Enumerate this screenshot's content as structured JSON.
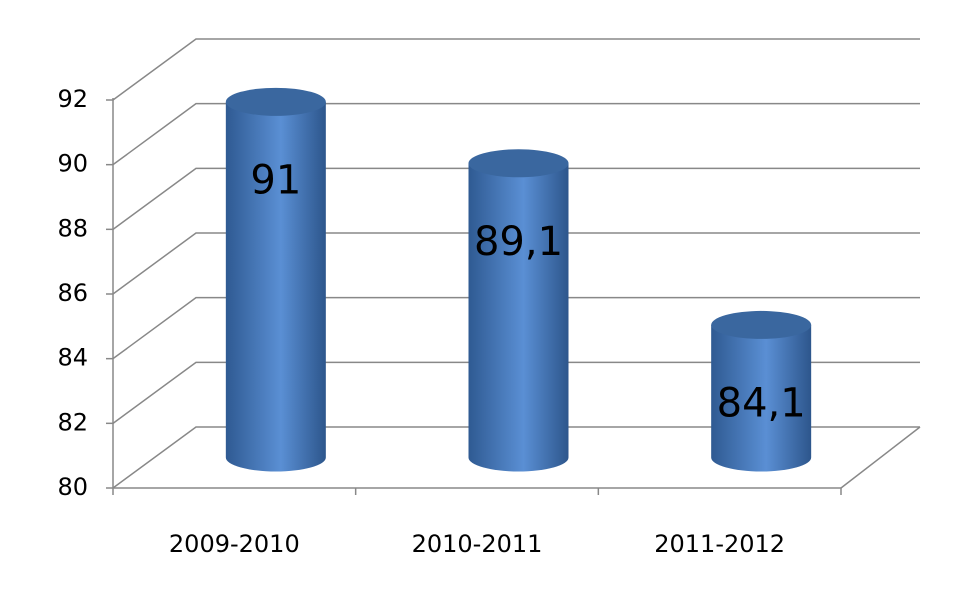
{
  "chart_data": {
    "type": "bar3d",
    "categories": [
      "2009-2010",
      "2010-2011",
      "2011-2012"
    ],
    "values": [
      91,
      89.1,
      84.1
    ],
    "value_labels": [
      "91",
      "89,1",
      "84,1"
    ],
    "color": "#4f81bd",
    "ylim": [
      80,
      92
    ],
    "yticks": [
      80,
      82,
      84,
      86,
      88,
      90,
      92
    ],
    "grid": true
  }
}
